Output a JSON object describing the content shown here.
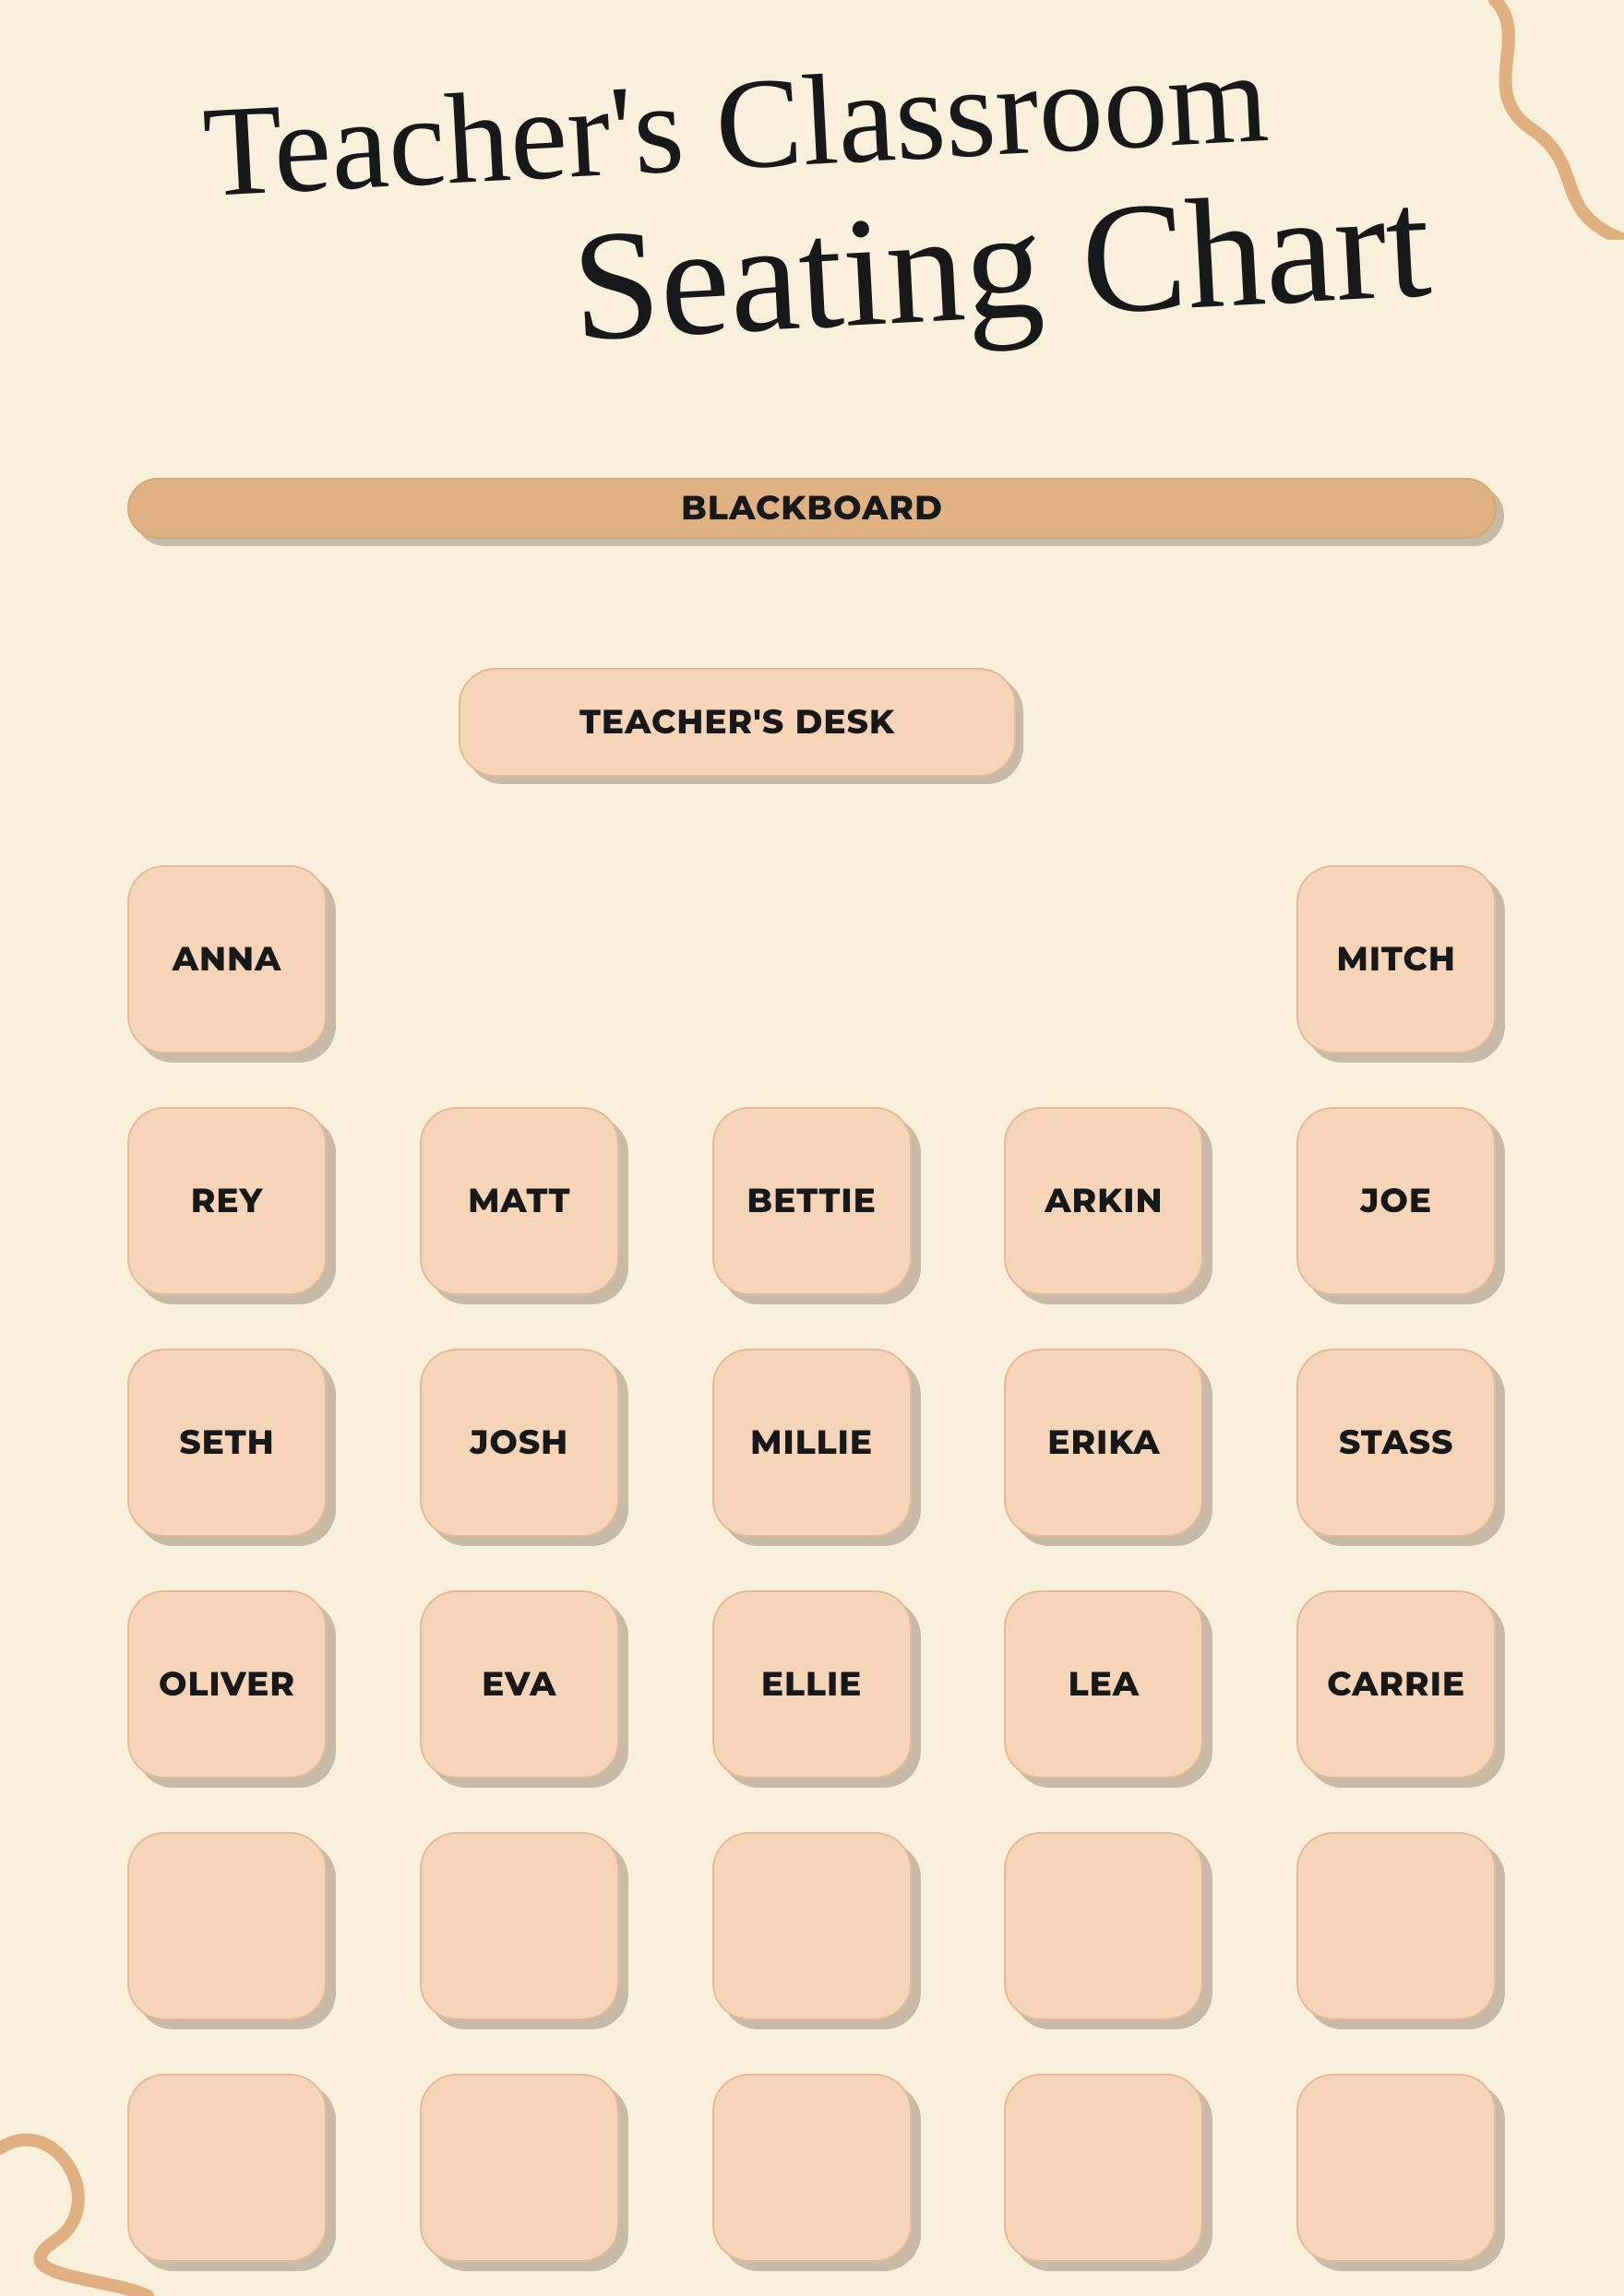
{
  "title_line1": "Teacher's Classroom",
  "title_line2": "Seating Chart",
  "blackboard_label": "BLACKBOARD",
  "teacher_desk_label": "TEACHER'S DESK",
  "style": {
    "background_color": "#f8f0db",
    "title_color": "#16181a",
    "label_color": "#16181a",
    "blackboard_fill": "#e0b283",
    "blackboard_border": "#d8a876",
    "blackboard_fontsize": 36,
    "desk_fill": "#f6d4b7",
    "desk_border": "#e6b995",
    "desk_fontsize": 36,
    "seat_fill": "#f6d4b7",
    "seat_border": "#e6b995",
    "seat_fontsize": 36,
    "shadow_color": "#6d5744",
    "shadow_opacity": 0.35,
    "squiggle_color": "#e0b081",
    "squiggle_width": 14,
    "seat_radius": 40,
    "grid_cols": 5,
    "grid_rows": 6,
    "seat_w": 216,
    "seat_h": 204
  },
  "seats": [
    [
      "ANNA",
      null,
      null,
      null,
      "MITCH"
    ],
    [
      "REY",
      "MATT",
      "BETTIE",
      "ARKIN",
      "JOE"
    ],
    [
      "SETH",
      "JOSH",
      "MILLIE",
      "ERIKA",
      "STASS"
    ],
    [
      "OLIVER",
      "EVA",
      "ELLIE",
      "LEA",
      "CARRIE"
    ],
    [
      "",
      "",
      "",
      "",
      ""
    ],
    [
      "",
      "",
      "",
      "",
      ""
    ]
  ]
}
